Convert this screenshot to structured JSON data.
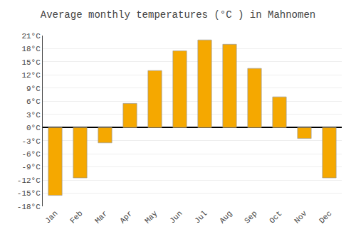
{
  "chart_data": {
    "type": "bar",
    "title": "Average monthly temperatures (°C ) in Mahnomen",
    "categories": [
      "Jan",
      "Feb",
      "Mar",
      "Apr",
      "May",
      "Jun",
      "Jul",
      "Aug",
      "Sep",
      "Oct",
      "Nov",
      "Dec"
    ],
    "values": [
      -15.5,
      -11.5,
      -3.5,
      5.5,
      13.0,
      17.5,
      20.0,
      19.0,
      13.5,
      7.0,
      -2.5,
      -11.5
    ],
    "color": "#F5A800",
    "ylim": [
      -18,
      21
    ],
    "yticks": [
      {
        "value": -18,
        "label": "-18°C"
      },
      {
        "value": -15,
        "label": "-15°C"
      },
      {
        "value": -12,
        "label": "-12°C"
      },
      {
        "value": -9,
        "label": "-9°C"
      },
      {
        "value": -6,
        "label": "-6°C"
      },
      {
        "value": -3,
        "label": "-3°C"
      },
      {
        "value": 0,
        "label": "0°C"
      },
      {
        "value": 3,
        "label": "3°C"
      },
      {
        "value": 6,
        "label": "6°C"
      },
      {
        "value": 9,
        "label": "9°C"
      },
      {
        "value": 12,
        "label": "12°C"
      },
      {
        "value": 15,
        "label": "15°C"
      },
      {
        "value": 18,
        "label": "18°C"
      },
      {
        "value": 21,
        "label": "21°C"
      }
    ],
    "grid": true
  }
}
